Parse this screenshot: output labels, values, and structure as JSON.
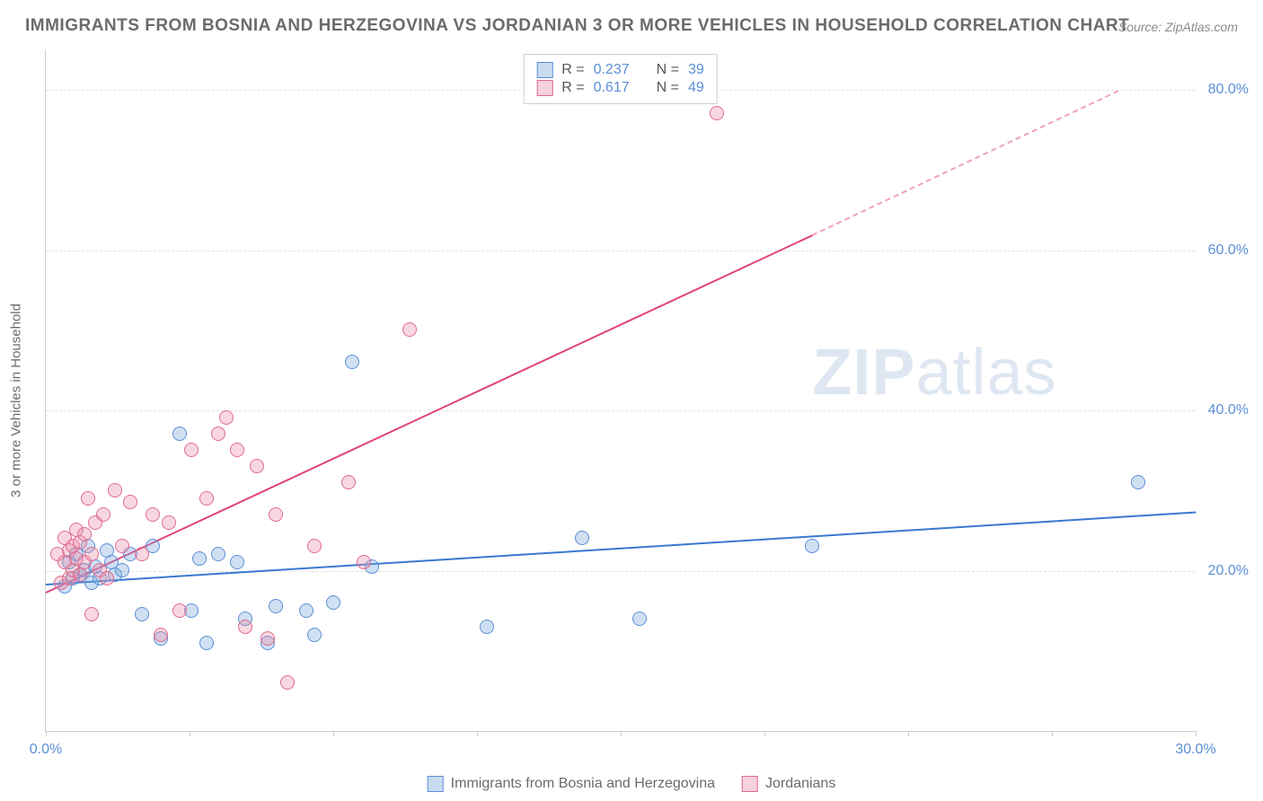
{
  "title": "IMMIGRANTS FROM BOSNIA AND HERZEGOVINA VS JORDANIAN 3 OR MORE VEHICLES IN HOUSEHOLD CORRELATION CHART",
  "source": "Source: ZipAtlas.com",
  "ylabel": "3 or more Vehicles in Household",
  "watermark_zip": "ZIP",
  "watermark_atlas": "atlas",
  "chart": {
    "type": "scatter",
    "xlim": [
      0,
      30
    ],
    "ylim": [
      0,
      85
    ],
    "xticks": [
      0,
      30
    ],
    "xtick_labels": [
      "0.0%",
      "30.0%"
    ],
    "xtick_marks": [
      0,
      3.75,
      7.5,
      11.25,
      15,
      18.75,
      22.5,
      26.25,
      30
    ],
    "yticks": [
      20,
      40,
      60,
      80
    ],
    "ytick_labels": [
      "20.0%",
      "40.0%",
      "60.0%",
      "80.0%"
    ],
    "background_color": "#ffffff",
    "grid_color": "#e0e0e0",
    "axis_color": "#cccccc",
    "series": [
      {
        "name": "Immigrants from Bosnia and Herzegovina",
        "short": "bosnia",
        "color": "#5a8fd6",
        "fill": "rgba(120,165,220,0.35)",
        "r": 0.237,
        "n": 39,
        "trend": {
          "x1": 0,
          "y1": 18.5,
          "x2": 30,
          "y2": 27.5
        },
        "points": [
          [
            0.5,
            18
          ],
          [
            0.6,
            21
          ],
          [
            0.7,
            19
          ],
          [
            0.8,
            22
          ],
          [
            0.9,
            19.5
          ],
          [
            1.0,
            20
          ],
          [
            1.1,
            23
          ],
          [
            1.2,
            18.5
          ],
          [
            1.3,
            20.5
          ],
          [
            1.4,
            19
          ],
          [
            1.6,
            22.5
          ],
          [
            1.7,
            21
          ],
          [
            1.8,
            19.5
          ],
          [
            2.0,
            20
          ],
          [
            2.2,
            22
          ],
          [
            2.5,
            14.5
          ],
          [
            2.8,
            23
          ],
          [
            3.0,
            11.5
          ],
          [
            3.5,
            37
          ],
          [
            3.8,
            15
          ],
          [
            4.0,
            21.5
          ],
          [
            4.2,
            11
          ],
          [
            4.5,
            22
          ],
          [
            5.0,
            21
          ],
          [
            5.2,
            14
          ],
          [
            5.8,
            11
          ],
          [
            6.0,
            15.5
          ],
          [
            6.8,
            15
          ],
          [
            7.0,
            12
          ],
          [
            7.5,
            16
          ],
          [
            8.0,
            46
          ],
          [
            8.5,
            20.5
          ],
          [
            11.5,
            13
          ],
          [
            14.0,
            24
          ],
          [
            15.5,
            14
          ],
          [
            20.0,
            23
          ],
          [
            28.5,
            31
          ]
        ]
      },
      {
        "name": "Jordanians",
        "short": "jordanian",
        "color": "#e06a8f",
        "fill": "rgba(235,140,170,0.35)",
        "r": 0.617,
        "n": 49,
        "trend_solid": {
          "x1": 0,
          "y1": 17.5,
          "x2": 20,
          "y2": 62
        },
        "trend_dashed": {
          "x1": 20,
          "y1": 62,
          "x2": 28,
          "y2": 80
        },
        "points": [
          [
            0.3,
            22
          ],
          [
            0.4,
            18.5
          ],
          [
            0.5,
            21
          ],
          [
            0.5,
            24
          ],
          [
            0.6,
            19
          ],
          [
            0.6,
            22.5
          ],
          [
            0.7,
            20
          ],
          [
            0.7,
            23
          ],
          [
            0.8,
            21.5
          ],
          [
            0.8,
            25
          ],
          [
            0.9,
            19.5
          ],
          [
            0.9,
            23.5
          ],
          [
            1.0,
            21
          ],
          [
            1.0,
            24.5
          ],
          [
            1.1,
            29
          ],
          [
            1.2,
            14.5
          ],
          [
            1.2,
            22
          ],
          [
            1.3,
            26
          ],
          [
            1.4,
            20
          ],
          [
            1.5,
            27
          ],
          [
            1.6,
            19
          ],
          [
            1.8,
            30
          ],
          [
            2.0,
            23
          ],
          [
            2.2,
            28.5
          ],
          [
            2.5,
            22
          ],
          [
            2.8,
            27
          ],
          [
            3.0,
            12
          ],
          [
            3.2,
            26
          ],
          [
            3.5,
            15
          ],
          [
            3.8,
            35
          ],
          [
            4.2,
            29
          ],
          [
            4.5,
            37
          ],
          [
            4.7,
            39
          ],
          [
            5.0,
            35
          ],
          [
            5.2,
            13
          ],
          [
            5.5,
            33
          ],
          [
            5.8,
            11.5
          ],
          [
            6.0,
            27
          ],
          [
            6.3,
            6
          ],
          [
            7.0,
            23
          ],
          [
            7.9,
            31
          ],
          [
            8.3,
            21
          ],
          [
            9.5,
            50
          ],
          [
            17.5,
            77
          ]
        ]
      }
    ]
  },
  "legend_top": {
    "rows": [
      {
        "swatch": "blue",
        "r_label": "R =",
        "r_val": "0.237",
        "n_label": "N =",
        "n_val": "39"
      },
      {
        "swatch": "pink",
        "r_label": "R =",
        "r_val": "0.617",
        "n_label": "N =",
        "n_val": "49"
      }
    ]
  },
  "legend_bottom": {
    "items": [
      {
        "swatch": "blue",
        "label": "Immigrants from Bosnia and Herzegovina"
      },
      {
        "swatch": "pink",
        "label": "Jordanians"
      }
    ]
  }
}
